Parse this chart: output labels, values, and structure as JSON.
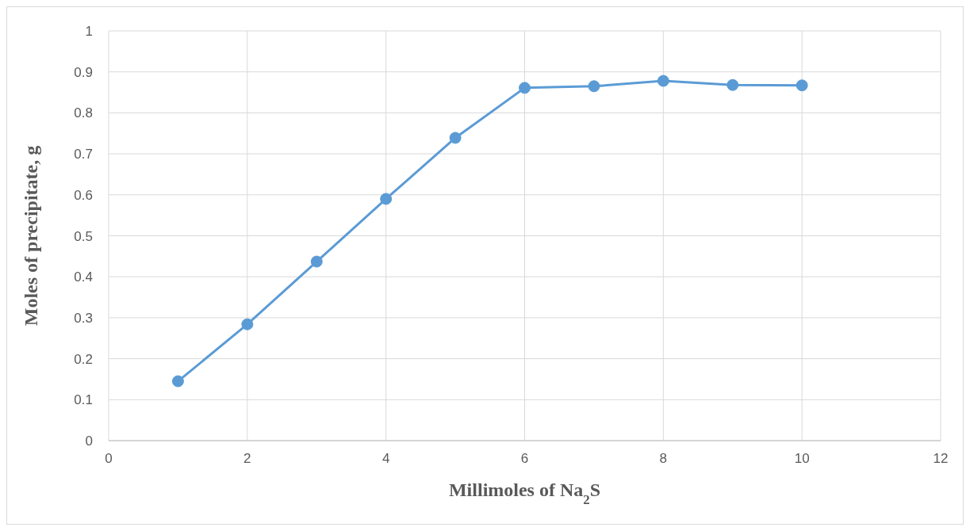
{
  "chart_data": {
    "type": "line",
    "xlabel": "Millimoles of Na$_{2}$S",
    "ylabel": "Moles of precipitate, g",
    "x": [
      1,
      2,
      3,
      4,
      5,
      6,
      7,
      8,
      9,
      10
    ],
    "series": [
      {
        "color": "#5b9bd5",
        "values": [
          0.145,
          0.284,
          0.437,
          0.59,
          0.739,
          0.861,
          0.865,
          0.878,
          0.868,
          0.867
        ]
      }
    ],
    "xlim": [
      0,
      12
    ],
    "xticks": [
      0,
      2,
      4,
      6,
      8,
      10,
      12
    ],
    "ylim": [
      0,
      1
    ],
    "yticks": [
      0,
      0.1,
      0.2,
      0.3,
      0.4,
      0.5,
      0.6,
      0.7,
      0.8,
      0.9,
      1
    ],
    "grid": true,
    "marker": "circle",
    "line_style": "solid",
    "legend": false
  }
}
